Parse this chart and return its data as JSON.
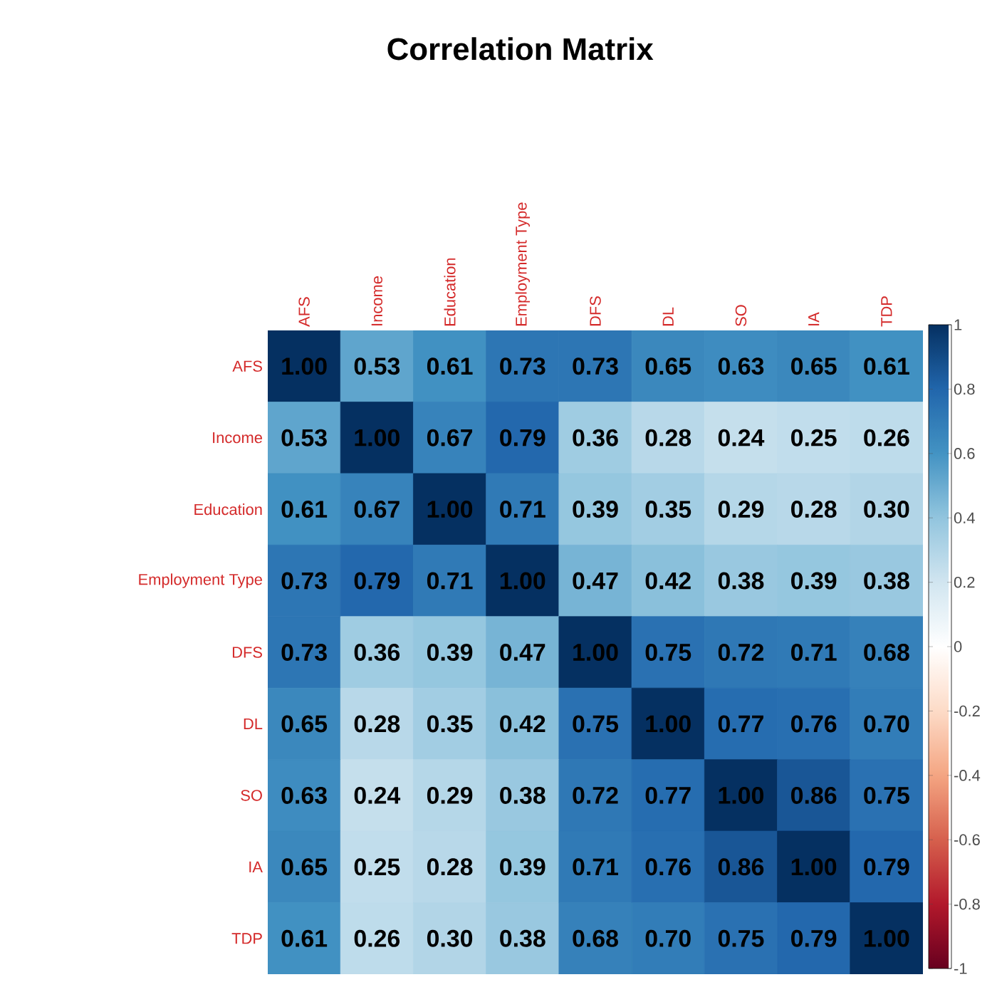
{
  "chart_data": {
    "type": "heatmap",
    "title": "Correlation Matrix",
    "categories": [
      "AFS",
      "Income",
      "Education",
      "Employment Type",
      "DFS",
      "DL",
      "SO",
      "IA",
      "TDP"
    ],
    "y_categories": [
      "AFS",
      "Income",
      "Education",
      "Employment Type",
      "DFS",
      "DL",
      "SO",
      "IA",
      "TDP"
    ],
    "cells": [
      [
        1,
        0.53,
        0.61,
        0.73,
        0.73,
        0.65,
        0.63,
        0.65,
        0.61
      ],
      [
        0.53,
        1,
        0.67,
        0.79,
        0.36,
        0.28,
        0.24,
        0.25,
        0.26
      ],
      [
        0.61,
        0.67,
        1,
        0.71,
        0.39,
        0.35,
        0.29,
        0.28,
        0.3
      ],
      [
        0.73,
        0.79,
        0.71,
        1,
        0.47,
        0.42,
        0.38,
        0.39,
        0.38
      ],
      [
        0.73,
        0.36,
        0.39,
        0.47,
        1,
        0.75,
        0.72,
        0.71,
        0.68
      ],
      [
        0.65,
        0.28,
        0.35,
        0.42,
        0.75,
        1,
        0.77,
        0.76,
        0.7
      ],
      [
        0.63,
        0.24,
        0.29,
        0.38,
        0.72,
        0.77,
        1,
        0.86,
        0.75
      ],
      [
        0.65,
        0.25,
        0.28,
        0.39,
        0.71,
        0.76,
        0.86,
        1,
        0.79
      ],
      [
        0.61,
        0.26,
        0.3,
        0.38,
        0.68,
        0.7,
        0.75,
        0.79,
        1
      ]
    ],
    "cell_labels": [
      [
        "1.00",
        "0.53",
        "0.61",
        "0.73",
        "0.73",
        "0.65",
        "0.63",
        "0.65",
        "0.61"
      ],
      [
        "0.53",
        "1.00",
        "0.67",
        "0.79",
        "0.36",
        "0.28",
        "0.24",
        "0.25",
        "0.26"
      ],
      [
        "0.61",
        "0.67",
        "1.00",
        "0.71",
        "0.39",
        "0.35",
        "0.29",
        "0.28",
        "0.30"
      ],
      [
        "0.73",
        "0.79",
        "0.71",
        "1.00",
        "0.47",
        "0.42",
        "0.38",
        "0.39",
        "0.38"
      ],
      [
        "0.73",
        "0.36",
        "0.39",
        "0.47",
        "1.00",
        "0.75",
        "0.72",
        "0.71",
        "0.68"
      ],
      [
        "0.65",
        "0.28",
        "0.35",
        "0.42",
        "0.75",
        "1.00",
        "0.77",
        "0.76",
        "0.70"
      ],
      [
        "0.63",
        "0.24",
        "0.29",
        "0.38",
        "0.72",
        "0.77",
        "1.00",
        "0.86",
        "0.75"
      ],
      [
        "0.65",
        "0.25",
        "0.28",
        "0.39",
        "0.71",
        "0.76",
        "0.86",
        "1.00",
        "0.79"
      ],
      [
        "0.61",
        "0.26",
        "0.30",
        "0.38",
        "0.68",
        "0.70",
        "0.75",
        "0.79",
        "1.00"
      ]
    ],
    "clim": [
      -1,
      1
    ],
    "cticks": [
      -1,
      -0.8,
      -0.6,
      -0.4,
      -0.2,
      0,
      0.2,
      0.4,
      0.6,
      0.8,
      1
    ]
  }
}
